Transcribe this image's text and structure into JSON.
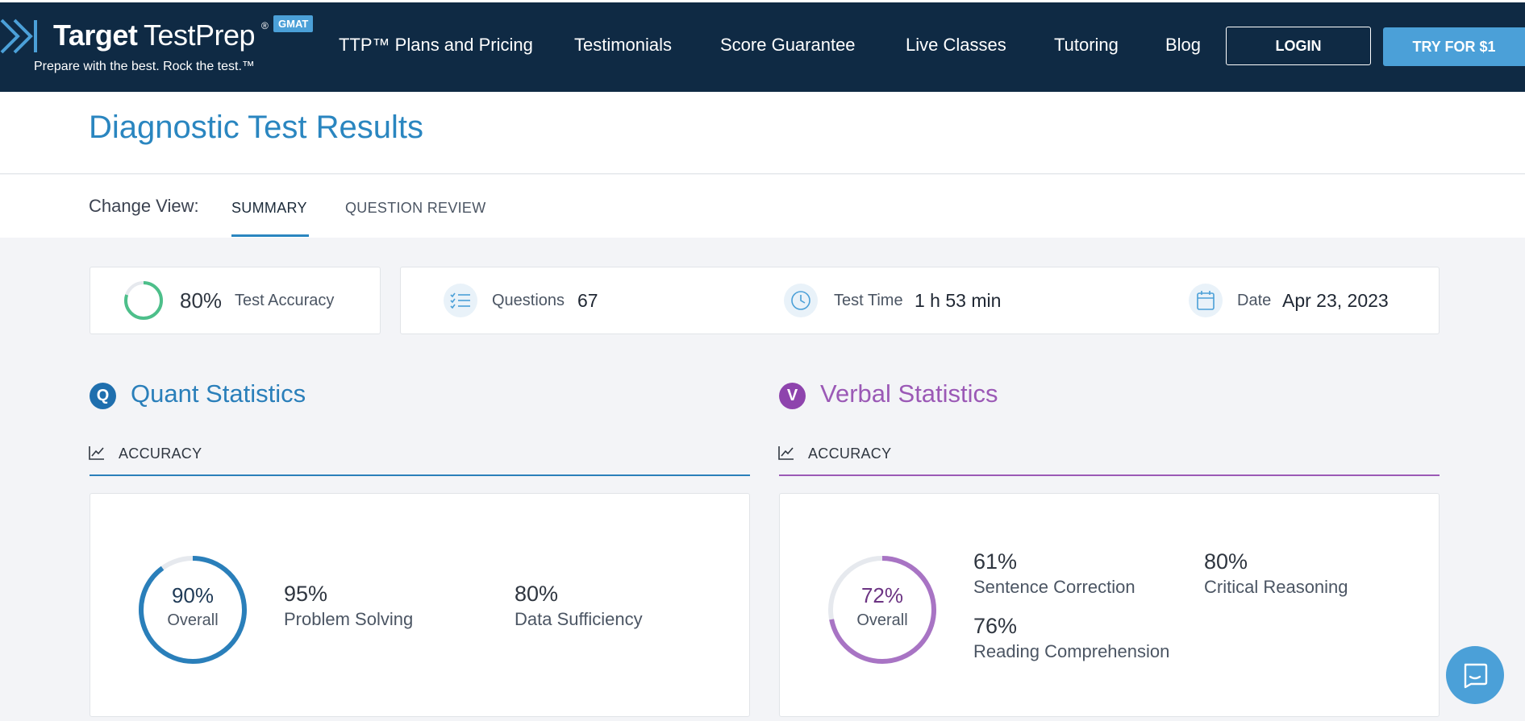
{
  "header": {
    "logo": {
      "word1": "Target",
      "word2": "TestPrep",
      "registered": "®",
      "badge": "GMAT",
      "tagline": "Prepare with the best. Rock the test.™"
    },
    "nav": [
      {
        "label": "TTP™ Plans and Pricing"
      },
      {
        "label": "Testimonials"
      },
      {
        "label": "Score Guarantee"
      },
      {
        "label": "Live Classes"
      },
      {
        "label": "Tutoring"
      },
      {
        "label": "Blog"
      }
    ],
    "login_label": "LOGIN",
    "try_label": "TRY FOR $1"
  },
  "page": {
    "title": "Diagnostic Test Results"
  },
  "view": {
    "label": "Change View:",
    "tabs": [
      {
        "label": "SUMMARY",
        "active": true
      },
      {
        "label": "QUESTION REVIEW",
        "active": false
      }
    ]
  },
  "summary": {
    "accuracy": {
      "value": "80%",
      "label": "Test Accuracy",
      "fraction": 0.8
    },
    "questions": {
      "label": "Questions",
      "value": "67"
    },
    "test_time": {
      "label": "Test Time",
      "value": "1 h 53 min"
    },
    "date": {
      "label": "Date",
      "value": "Apr 23, 2023"
    }
  },
  "quant": {
    "badge": "Q",
    "title": "Quant Statistics",
    "sub_label": "ACCURACY",
    "color": "#2a7fba",
    "overall": {
      "value": "90%",
      "label": "Overall",
      "fraction": 0.9
    },
    "stats": [
      {
        "value": "95%",
        "label": "Problem Solving"
      },
      {
        "value": "80%",
        "label": "Data Sufficiency"
      }
    ]
  },
  "verbal": {
    "badge": "V",
    "title": "Verbal Statistics",
    "sub_label": "ACCURACY",
    "color": "#9b59b6",
    "overall": {
      "value": "72%",
      "label": "Overall",
      "fraction": 0.72
    },
    "stats": [
      {
        "value": "61%",
        "label": "Sentence Correction"
      },
      {
        "value": "80%",
        "label": "Critical Reasoning"
      },
      {
        "value": "76%",
        "label": "Reading Comprehension"
      }
    ]
  },
  "colors": {
    "header_bg": "#0f2a44",
    "accent": "#4ba0d8",
    "title_blue": "#2a86c0",
    "accuracy_green": "#4dbf8a"
  },
  "icons": {
    "questions": "checklist-icon",
    "time": "clock-icon",
    "date": "calendar-icon",
    "accuracy": "trend-chart-icon",
    "chat": "chat-icon"
  }
}
